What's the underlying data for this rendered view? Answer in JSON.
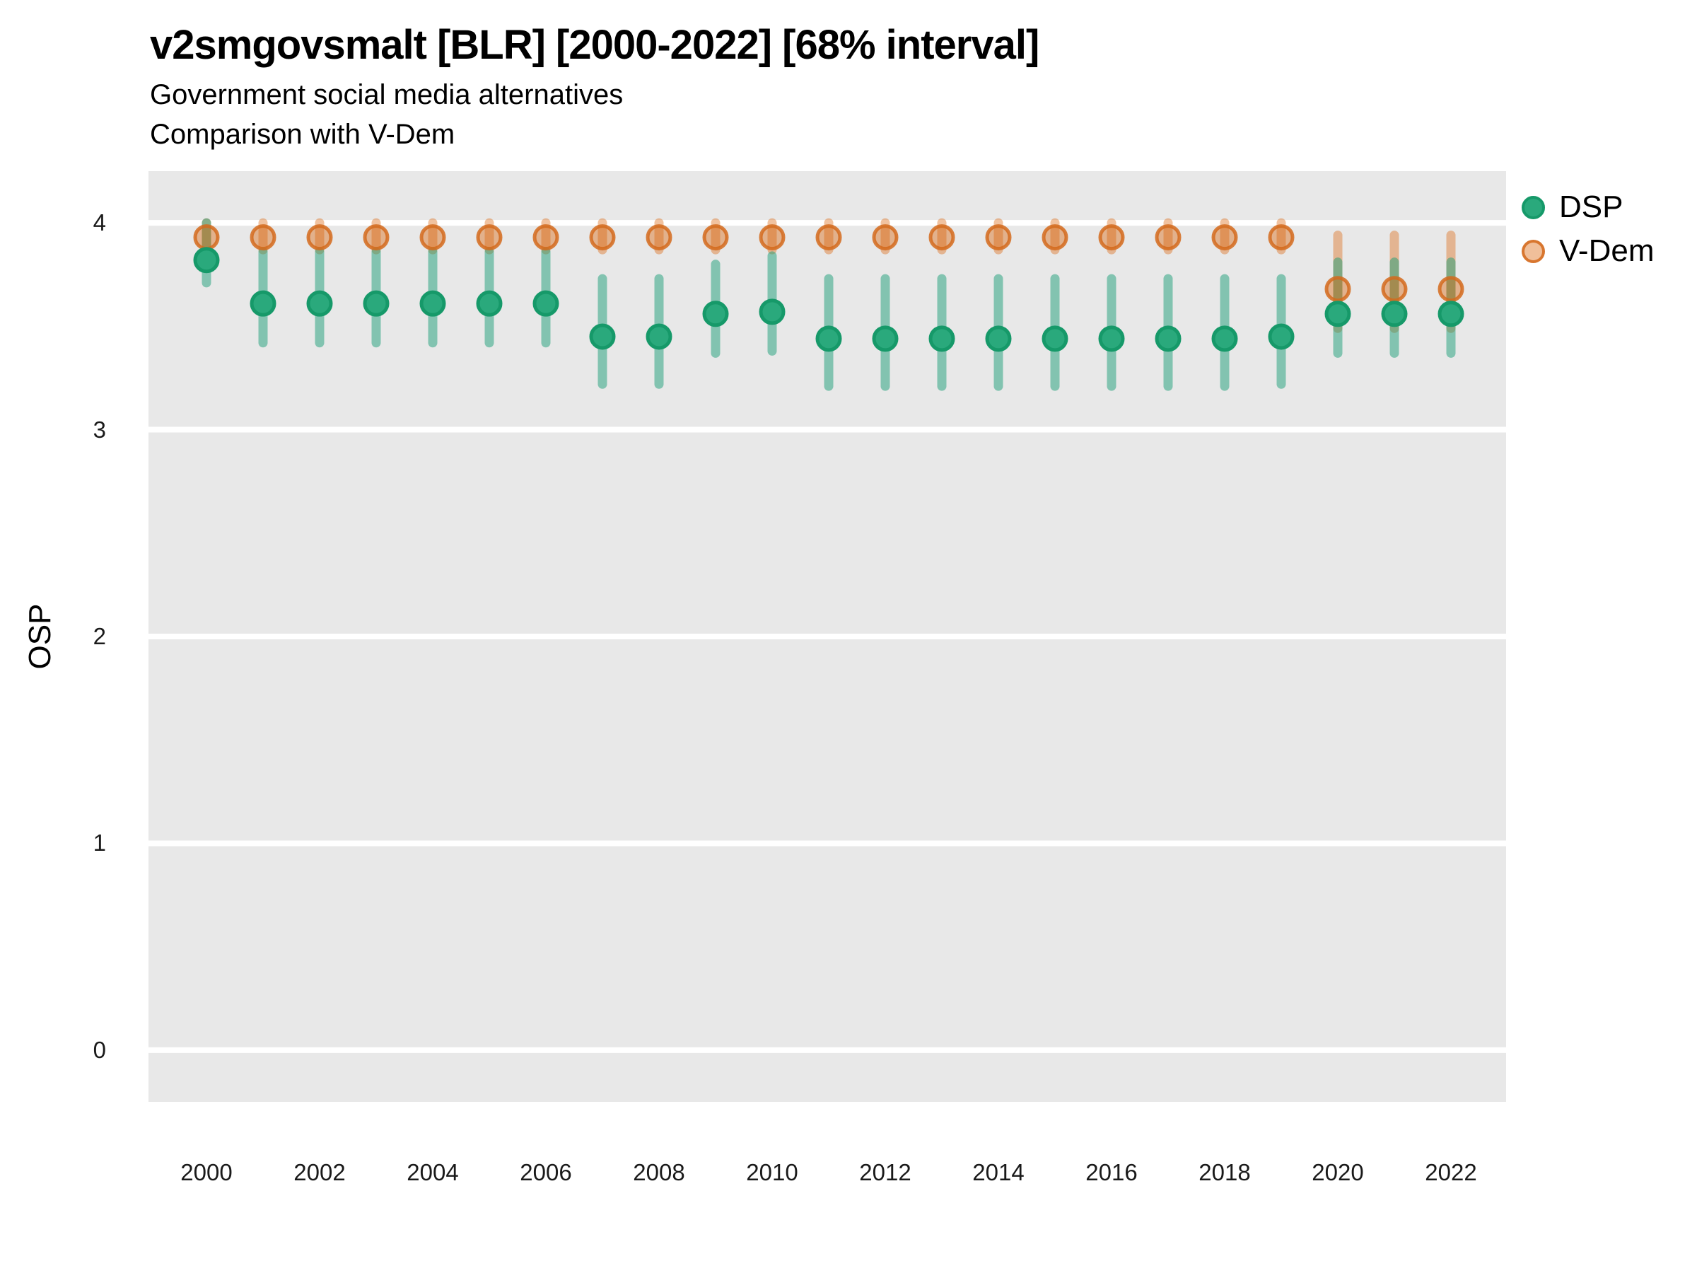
{
  "header": {
    "title": "v2smgovsmalt [BLR] [2000-2022] [68% interval]",
    "subtitle1": "Government social media alternatives",
    "subtitle2": "Comparison with V-Dem"
  },
  "axes": {
    "y_title": "OSP",
    "y_tick_labels": [
      "4",
      "3",
      "2",
      "1",
      "0"
    ],
    "x_tick_labels": [
      "2000",
      "2002",
      "2004",
      "2006",
      "2008",
      "2010",
      "2012",
      "2014",
      "2016",
      "2018",
      "2020",
      "2022"
    ]
  },
  "legend": {
    "items": [
      {
        "key": "dsp",
        "label": "DSP"
      },
      {
        "key": "vdem",
        "label": "V-Dem"
      }
    ]
  },
  "colors": {
    "panel_background": "#e8e8e8",
    "gridline": "#ffffff",
    "dsp_point_fill": "#2aa97c",
    "dsp_point_stroke": "#169969",
    "dsp_interval": "rgba(27,158,119,0.5)",
    "vdem_point_fill": "rgba(217,95,2,0.4)",
    "vdem_point_stroke": "rgba(211,106,28,0.85)",
    "vdem_interval": "rgba(217,95,2,0.38)"
  },
  "chart_data": {
    "type": "scatter",
    "subtype": "pointrange",
    "title": "v2smgovsmalt [BLR] [2000-2022] [68% interval]",
    "subtitle": [
      "Government social media alternatives",
      "Comparison with V-Dem"
    ],
    "xlabel": "",
    "ylabel": "OSP",
    "ylim": [
      -0.25,
      4.25
    ],
    "xlim": [
      1998.98,
      2023.02
    ],
    "y_ticks": [
      0,
      1,
      2,
      3,
      4
    ],
    "x_ticks": [
      2000,
      2002,
      2004,
      2006,
      2008,
      2010,
      2012,
      2014,
      2016,
      2018,
      2020,
      2022
    ],
    "grid": "horizontal-major-only",
    "legend_position": "right-top",
    "interval_level": "68%",
    "series": [
      {
        "name": "DSP",
        "base_color": "#1b9e77",
        "points": [
          {
            "year": 2000,
            "value": 3.82,
            "lo": 3.71,
            "hi": 4.0
          },
          {
            "year": 2001,
            "value": 3.61,
            "lo": 3.42,
            "hi": 3.86
          },
          {
            "year": 2002,
            "value": 3.61,
            "lo": 3.42,
            "hi": 3.86
          },
          {
            "year": 2003,
            "value": 3.61,
            "lo": 3.42,
            "hi": 3.86
          },
          {
            "year": 2004,
            "value": 3.61,
            "lo": 3.42,
            "hi": 3.86
          },
          {
            "year": 2005,
            "value": 3.61,
            "lo": 3.42,
            "hi": 3.86
          },
          {
            "year": 2006,
            "value": 3.61,
            "lo": 3.42,
            "hi": 3.86
          },
          {
            "year": 2007,
            "value": 3.45,
            "lo": 3.22,
            "hi": 3.73
          },
          {
            "year": 2008,
            "value": 3.45,
            "lo": 3.22,
            "hi": 3.73
          },
          {
            "year": 2009,
            "value": 3.56,
            "lo": 3.37,
            "hi": 3.8
          },
          {
            "year": 2010,
            "value": 3.57,
            "lo": 3.38,
            "hi": 3.84
          },
          {
            "year": 2011,
            "value": 3.44,
            "lo": 3.21,
            "hi": 3.73
          },
          {
            "year": 2012,
            "value": 3.44,
            "lo": 3.21,
            "hi": 3.73
          },
          {
            "year": 2013,
            "value": 3.44,
            "lo": 3.21,
            "hi": 3.73
          },
          {
            "year": 2014,
            "value": 3.44,
            "lo": 3.21,
            "hi": 3.73
          },
          {
            "year": 2015,
            "value": 3.44,
            "lo": 3.21,
            "hi": 3.73
          },
          {
            "year": 2016,
            "value": 3.44,
            "lo": 3.21,
            "hi": 3.73
          },
          {
            "year": 2017,
            "value": 3.44,
            "lo": 3.21,
            "hi": 3.73
          },
          {
            "year": 2018,
            "value": 3.44,
            "lo": 3.21,
            "hi": 3.73
          },
          {
            "year": 2019,
            "value": 3.45,
            "lo": 3.22,
            "hi": 3.73
          },
          {
            "year": 2020,
            "value": 3.56,
            "lo": 3.37,
            "hi": 3.81
          },
          {
            "year": 2021,
            "value": 3.56,
            "lo": 3.37,
            "hi": 3.81
          },
          {
            "year": 2022,
            "value": 3.56,
            "lo": 3.37,
            "hi": 3.81
          }
        ]
      },
      {
        "name": "V-Dem",
        "base_color": "#d95f02",
        "points": [
          {
            "year": 2000,
            "value": 3.93,
            "lo": 3.87,
            "hi": 4.0
          },
          {
            "year": 2001,
            "value": 3.93,
            "lo": 3.87,
            "hi": 4.0
          },
          {
            "year": 2002,
            "value": 3.93,
            "lo": 3.87,
            "hi": 4.0
          },
          {
            "year": 2003,
            "value": 3.93,
            "lo": 3.87,
            "hi": 4.0
          },
          {
            "year": 2004,
            "value": 3.93,
            "lo": 3.87,
            "hi": 4.0
          },
          {
            "year": 2005,
            "value": 3.93,
            "lo": 3.87,
            "hi": 4.0
          },
          {
            "year": 2006,
            "value": 3.93,
            "lo": 3.87,
            "hi": 4.0
          },
          {
            "year": 2007,
            "value": 3.93,
            "lo": 3.87,
            "hi": 4.0
          },
          {
            "year": 2008,
            "value": 3.93,
            "lo": 3.87,
            "hi": 4.0
          },
          {
            "year": 2009,
            "value": 3.93,
            "lo": 3.87,
            "hi": 4.0
          },
          {
            "year": 2010,
            "value": 3.93,
            "lo": 3.87,
            "hi": 4.0
          },
          {
            "year": 2011,
            "value": 3.93,
            "lo": 3.87,
            "hi": 4.0
          },
          {
            "year": 2012,
            "value": 3.93,
            "lo": 3.87,
            "hi": 4.0
          },
          {
            "year": 2013,
            "value": 3.93,
            "lo": 3.87,
            "hi": 4.0
          },
          {
            "year": 2014,
            "value": 3.93,
            "lo": 3.87,
            "hi": 4.0
          },
          {
            "year": 2015,
            "value": 3.93,
            "lo": 3.87,
            "hi": 4.0
          },
          {
            "year": 2016,
            "value": 3.93,
            "lo": 3.87,
            "hi": 4.0
          },
          {
            "year": 2017,
            "value": 3.93,
            "lo": 3.87,
            "hi": 4.0
          },
          {
            "year": 2018,
            "value": 3.93,
            "lo": 3.87,
            "hi": 4.0
          },
          {
            "year": 2019,
            "value": 3.93,
            "lo": 3.87,
            "hi": 4.0
          },
          {
            "year": 2020,
            "value": 3.68,
            "lo": 3.49,
            "hi": 3.94
          },
          {
            "year": 2021,
            "value": 3.68,
            "lo": 3.49,
            "hi": 3.94
          },
          {
            "year": 2022,
            "value": 3.68,
            "lo": 3.49,
            "hi": 3.94
          }
        ]
      }
    ]
  }
}
